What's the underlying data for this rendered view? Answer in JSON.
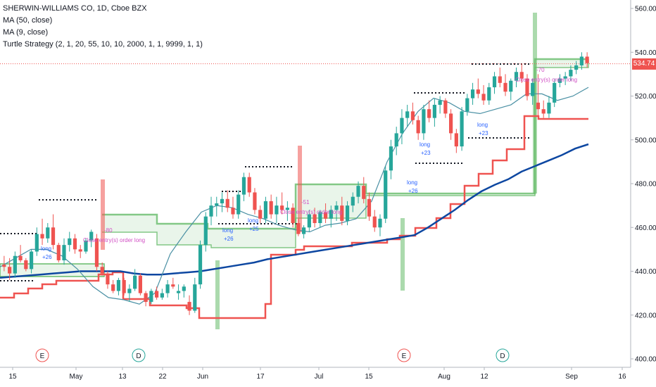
{
  "legend": {
    "title": "SHERWIN-WILLIAMS CO, 1D, Cboe BZX",
    "ma50": "MA (50, close)",
    "ma9": "MA (9, close)",
    "turtle": "Turtle Strategy (2, 1, 20, 55, 10, 10, 2000, 1, 1, 9999, 1, 1)"
  },
  "last_price": "534.74",
  "colors": {
    "up": "#26a69a",
    "down": "#ef5350",
    "ma50": "#0d47a1",
    "ma9": "#4a90a4",
    "turtle_band": "#66bb6a",
    "stop": "#ef5350",
    "entry_dots": "#131722",
    "signal_text": "#d14ec4"
  },
  "chart_data": {
    "type": "candlestick",
    "y_axis": {
      "min": 400,
      "max": 560,
      "position": "right",
      "ticks": [
        "400.00",
        "420.00",
        "440.00",
        "460.00",
        "480.00",
        "500.00",
        "520.00",
        "540.00",
        "560.00"
      ]
    },
    "x_axis": {
      "tick_labels": [
        "15",
        "May",
        "13",
        "22",
        "Jun",
        "17",
        "Jul",
        "15",
        "Aug",
        "12",
        "Sep",
        "16"
      ]
    },
    "series": [
      {
        "name": "MA (50, close)",
        "type": "line",
        "values": [
          437,
          437.5,
          438,
          438.5,
          439,
          439.5,
          440,
          440,
          440,
          440,
          439,
          438.5,
          438.5,
          439,
          439.5,
          440,
          441,
          442,
          443,
          444,
          445.5,
          446.5,
          447.5,
          448.5,
          449.5,
          450.5,
          451.5,
          452.5,
          453.5,
          454.5,
          455.5,
          456.5,
          460,
          464,
          468,
          472.5,
          476.5,
          479.5,
          482,
          485.5,
          488,
          490.5,
          493,
          496,
          498
        ]
      },
      {
        "name": "MA (9, close)",
        "type": "line",
        "values": [
          442,
          446,
          450,
          450,
          447,
          441,
          433,
          428,
          427,
          425,
          430,
          448,
          458,
          467,
          470,
          469,
          466,
          464,
          461,
          459,
          458,
          461,
          462,
          464,
          472,
          490,
          503,
          513,
          519,
          517,
          513,
          512,
          514,
          516,
          521,
          521,
          518,
          520,
          524
        ]
      },
      {
        "name": "Turtle Strategy stop",
        "type": "step",
        "values": [
          428,
          432,
          435,
          437,
          438,
          442,
          445,
          428,
          425,
          425,
          422,
          417,
          417,
          417,
          417,
          421,
          430,
          450,
          455,
          455,
          456,
          460,
          462,
          460,
          445,
          451,
          456,
          462,
          470,
          480,
          490,
          497,
          503,
          510,
          510,
          509,
          509
        ]
      }
    ],
    "channel_levels": [
      456,
      473,
      445,
      488,
      465,
      526,
      535,
      501,
      489
    ],
    "annotations": [
      {
        "label": "long",
        "value": "+26"
      },
      {
        "label": "Close entry(s) order long",
        "value": "-80"
      },
      {
        "label": "long",
        "value": "+26"
      },
      {
        "label": "long",
        "value": "+25"
      },
      {
        "label": "Close entry(s) order long",
        "value": "-51"
      },
      {
        "label": "long",
        "value": "+26"
      },
      {
        "label": "long",
        "value": "+23"
      },
      {
        "label": "long",
        "value": "+23"
      },
      {
        "label": "Close entry(s) order long",
        "value": "-70"
      }
    ],
    "events": [
      "E",
      "D",
      "E",
      "D"
    ],
    "candles": [
      [
        443,
        447,
        440,
        442
      ],
      [
        442,
        446,
        436,
        439
      ],
      [
        439,
        449,
        437,
        447
      ],
      [
        447,
        452,
        444,
        445
      ],
      [
        445,
        446,
        440,
        441
      ],
      [
        441,
        450,
        439,
        449
      ],
      [
        449,
        460,
        447,
        457
      ],
      [
        457,
        464,
        452,
        455
      ],
      [
        455,
        462,
        453,
        460
      ],
      [
        460,
        466,
        450,
        452
      ],
      [
        452,
        453,
        444,
        445
      ],
      [
        445,
        455,
        443,
        452
      ],
      [
        452,
        458,
        449,
        455
      ],
      [
        455,
        457,
        448,
        450
      ],
      [
        450,
        452,
        446,
        449
      ],
      [
        449,
        455,
        448,
        454
      ],
      [
        454,
        459,
        451,
        458
      ],
      [
        455,
        457,
        440,
        442
      ],
      [
        442,
        444,
        438,
        439
      ],
      [
        439,
        440,
        432,
        434
      ],
      [
        434,
        436,
        430,
        431
      ],
      [
        431,
        437,
        429,
        436
      ],
      [
        436,
        437,
        429,
        430
      ],
      [
        430,
        434,
        426,
        432
      ],
      [
        432,
        441,
        431,
        438
      ],
      [
        438,
        439,
        429,
        430
      ],
      [
        430,
        431,
        424,
        426
      ],
      [
        426,
        432,
        425,
        431
      ],
      [
        431,
        433,
        427,
        428
      ],
      [
        428,
        432,
        427,
        430
      ],
      [
        430,
        436,
        428,
        434
      ],
      [
        434,
        437,
        432,
        433
      ],
      [
        430,
        434,
        427,
        431
      ],
      [
        431,
        434,
        428,
        433
      ],
      [
        426,
        429,
        420,
        422
      ],
      [
        422,
        437,
        421,
        434
      ],
      [
        434,
        454,
        432,
        452
      ],
      [
        452,
        467,
        449,
        465
      ],
      [
        465,
        474,
        461,
        470
      ],
      [
        470,
        474,
        465,
        471
      ],
      [
        471,
        476,
        467,
        473
      ],
      [
        473,
        477,
        467,
        469
      ],
      [
        469,
        474,
        464,
        466
      ],
      [
        466,
        477,
        464,
        475
      ],
      [
        475,
        485,
        472,
        483
      ],
      [
        483,
        485,
        474,
        476
      ],
      [
        476,
        478,
        466,
        468
      ],
      [
        468,
        470,
        462,
        464
      ],
      [
        464,
        474,
        462,
        472
      ],
      [
        472,
        475,
        464,
        466
      ],
      [
        466,
        474,
        462,
        470
      ],
      [
        470,
        476,
        466,
        468
      ],
      [
        468,
        472,
        463,
        469
      ],
      [
        469,
        471,
        460,
        462
      ],
      [
        462,
        464,
        456,
        457
      ],
      [
        457,
        461,
        455,
        460
      ],
      [
        460,
        468,
        458,
        466
      ],
      [
        466,
        469,
        460,
        462
      ],
      [
        462,
        468,
        460,
        467
      ],
      [
        467,
        471,
        462,
        464
      ],
      [
        464,
        470,
        460,
        468
      ],
      [
        468,
        472,
        463,
        470
      ],
      [
        470,
        474,
        461,
        463
      ],
      [
        463,
        472,
        461,
        470
      ],
      [
        470,
        476,
        467,
        474
      ],
      [
        474,
        481,
        471,
        479
      ],
      [
        479,
        483,
        471,
        473
      ],
      [
        473,
        476,
        463,
        465
      ],
      [
        465,
        468,
        458,
        460
      ],
      [
        460,
        466,
        456,
        464
      ],
      [
        464,
        488,
        462,
        486
      ],
      [
        486,
        500,
        482,
        497
      ],
      [
        497,
        506,
        493,
        503
      ],
      [
        503,
        514,
        498,
        510
      ],
      [
        510,
        516,
        506,
        513
      ],
      [
        513,
        517,
        507,
        509
      ],
      [
        509,
        511,
        500,
        503
      ],
      [
        503,
        516,
        500,
        514
      ],
      [
        514,
        518,
        508,
        510
      ],
      [
        510,
        519,
        506,
        516
      ],
      [
        516,
        520,
        512,
        518
      ],
      [
        518,
        519,
        510,
        512
      ],
      [
        512,
        514,
        500,
        503
      ],
      [
        503,
        505,
        494,
        497
      ],
      [
        497,
        515,
        495,
        513
      ],
      [
        513,
        521,
        511,
        519
      ],
      [
        519,
        526,
        516,
        523
      ],
      [
        523,
        528,
        519,
        521
      ],
      [
        521,
        525,
        516,
        518
      ],
      [
        518,
        526,
        516,
        524
      ],
      [
        524,
        531,
        521,
        529
      ],
      [
        529,
        533,
        524,
        526
      ],
      [
        526,
        530,
        520,
        522
      ],
      [
        522,
        528,
        518,
        527
      ],
      [
        527,
        533,
        524,
        531
      ],
      [
        531,
        535,
        526,
        528
      ],
      [
        528,
        530,
        518,
        520
      ],
      [
        520,
        528,
        516,
        526
      ],
      [
        517,
        530,
        510,
        514
      ],
      [
        514,
        518,
        510,
        512
      ],
      [
        512,
        520,
        510,
        517
      ],
      [
        517,
        528,
        515,
        526
      ],
      [
        526,
        530,
        524,
        528
      ],
      [
        528,
        531,
        525,
        529
      ],
      [
        529,
        534,
        527,
        532
      ],
      [
        532,
        536,
        530,
        534
      ],
      [
        534,
        540,
        532,
        538
      ],
      [
        538,
        540,
        533,
        535
      ]
    ]
  }
}
